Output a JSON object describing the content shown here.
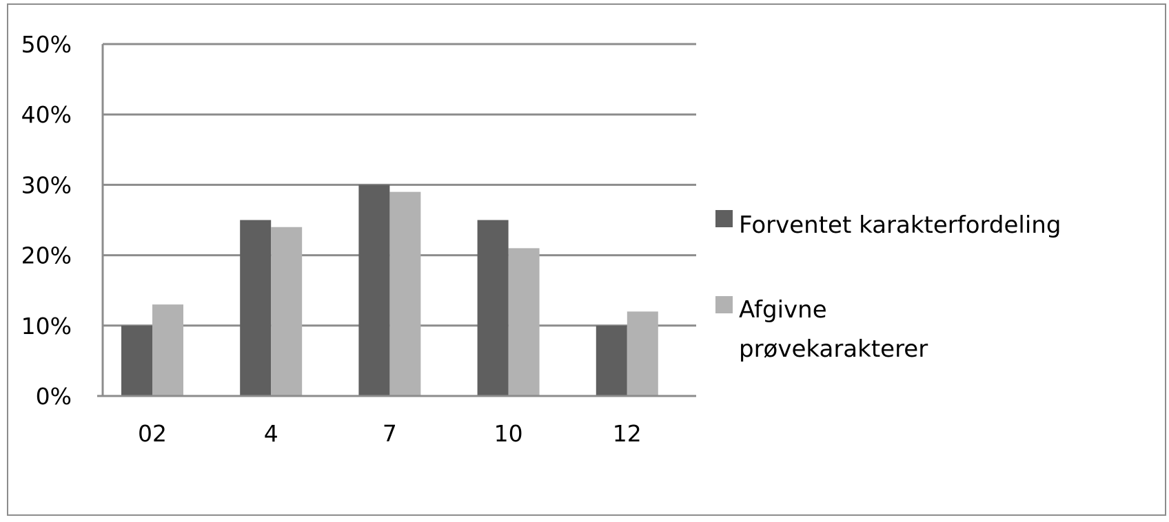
{
  "chart_data": {
    "type": "bar",
    "categories": [
      "02",
      "4",
      "7",
      "10",
      "12"
    ],
    "series": [
      {
        "name": "Forventet karakterfordeling",
        "values": [
          10,
          25,
          30,
          25,
          10
        ],
        "color": "#5f5f5f"
      },
      {
        "name": "Afgivne prøvekarakterer",
        "values": [
          13,
          24,
          29,
          21,
          12
        ],
        "color": "#b2b2b2"
      }
    ],
    "ylim": [
      0,
      50
    ],
    "yticks": [
      0,
      10,
      20,
      30,
      40,
      50
    ],
    "ytick_labels": [
      "0%",
      "10%",
      "20%",
      "30%",
      "40%",
      "50%"
    ],
    "grid": true,
    "legend_position": "right",
    "title": "",
    "xlabel": "",
    "ylabel": ""
  },
  "legend": {
    "items": [
      {
        "lines": [
          "Forventet karakterfordeling"
        ]
      },
      {
        "lines": [
          "Afgivne",
          "prøvekarakterer"
        ]
      }
    ]
  }
}
